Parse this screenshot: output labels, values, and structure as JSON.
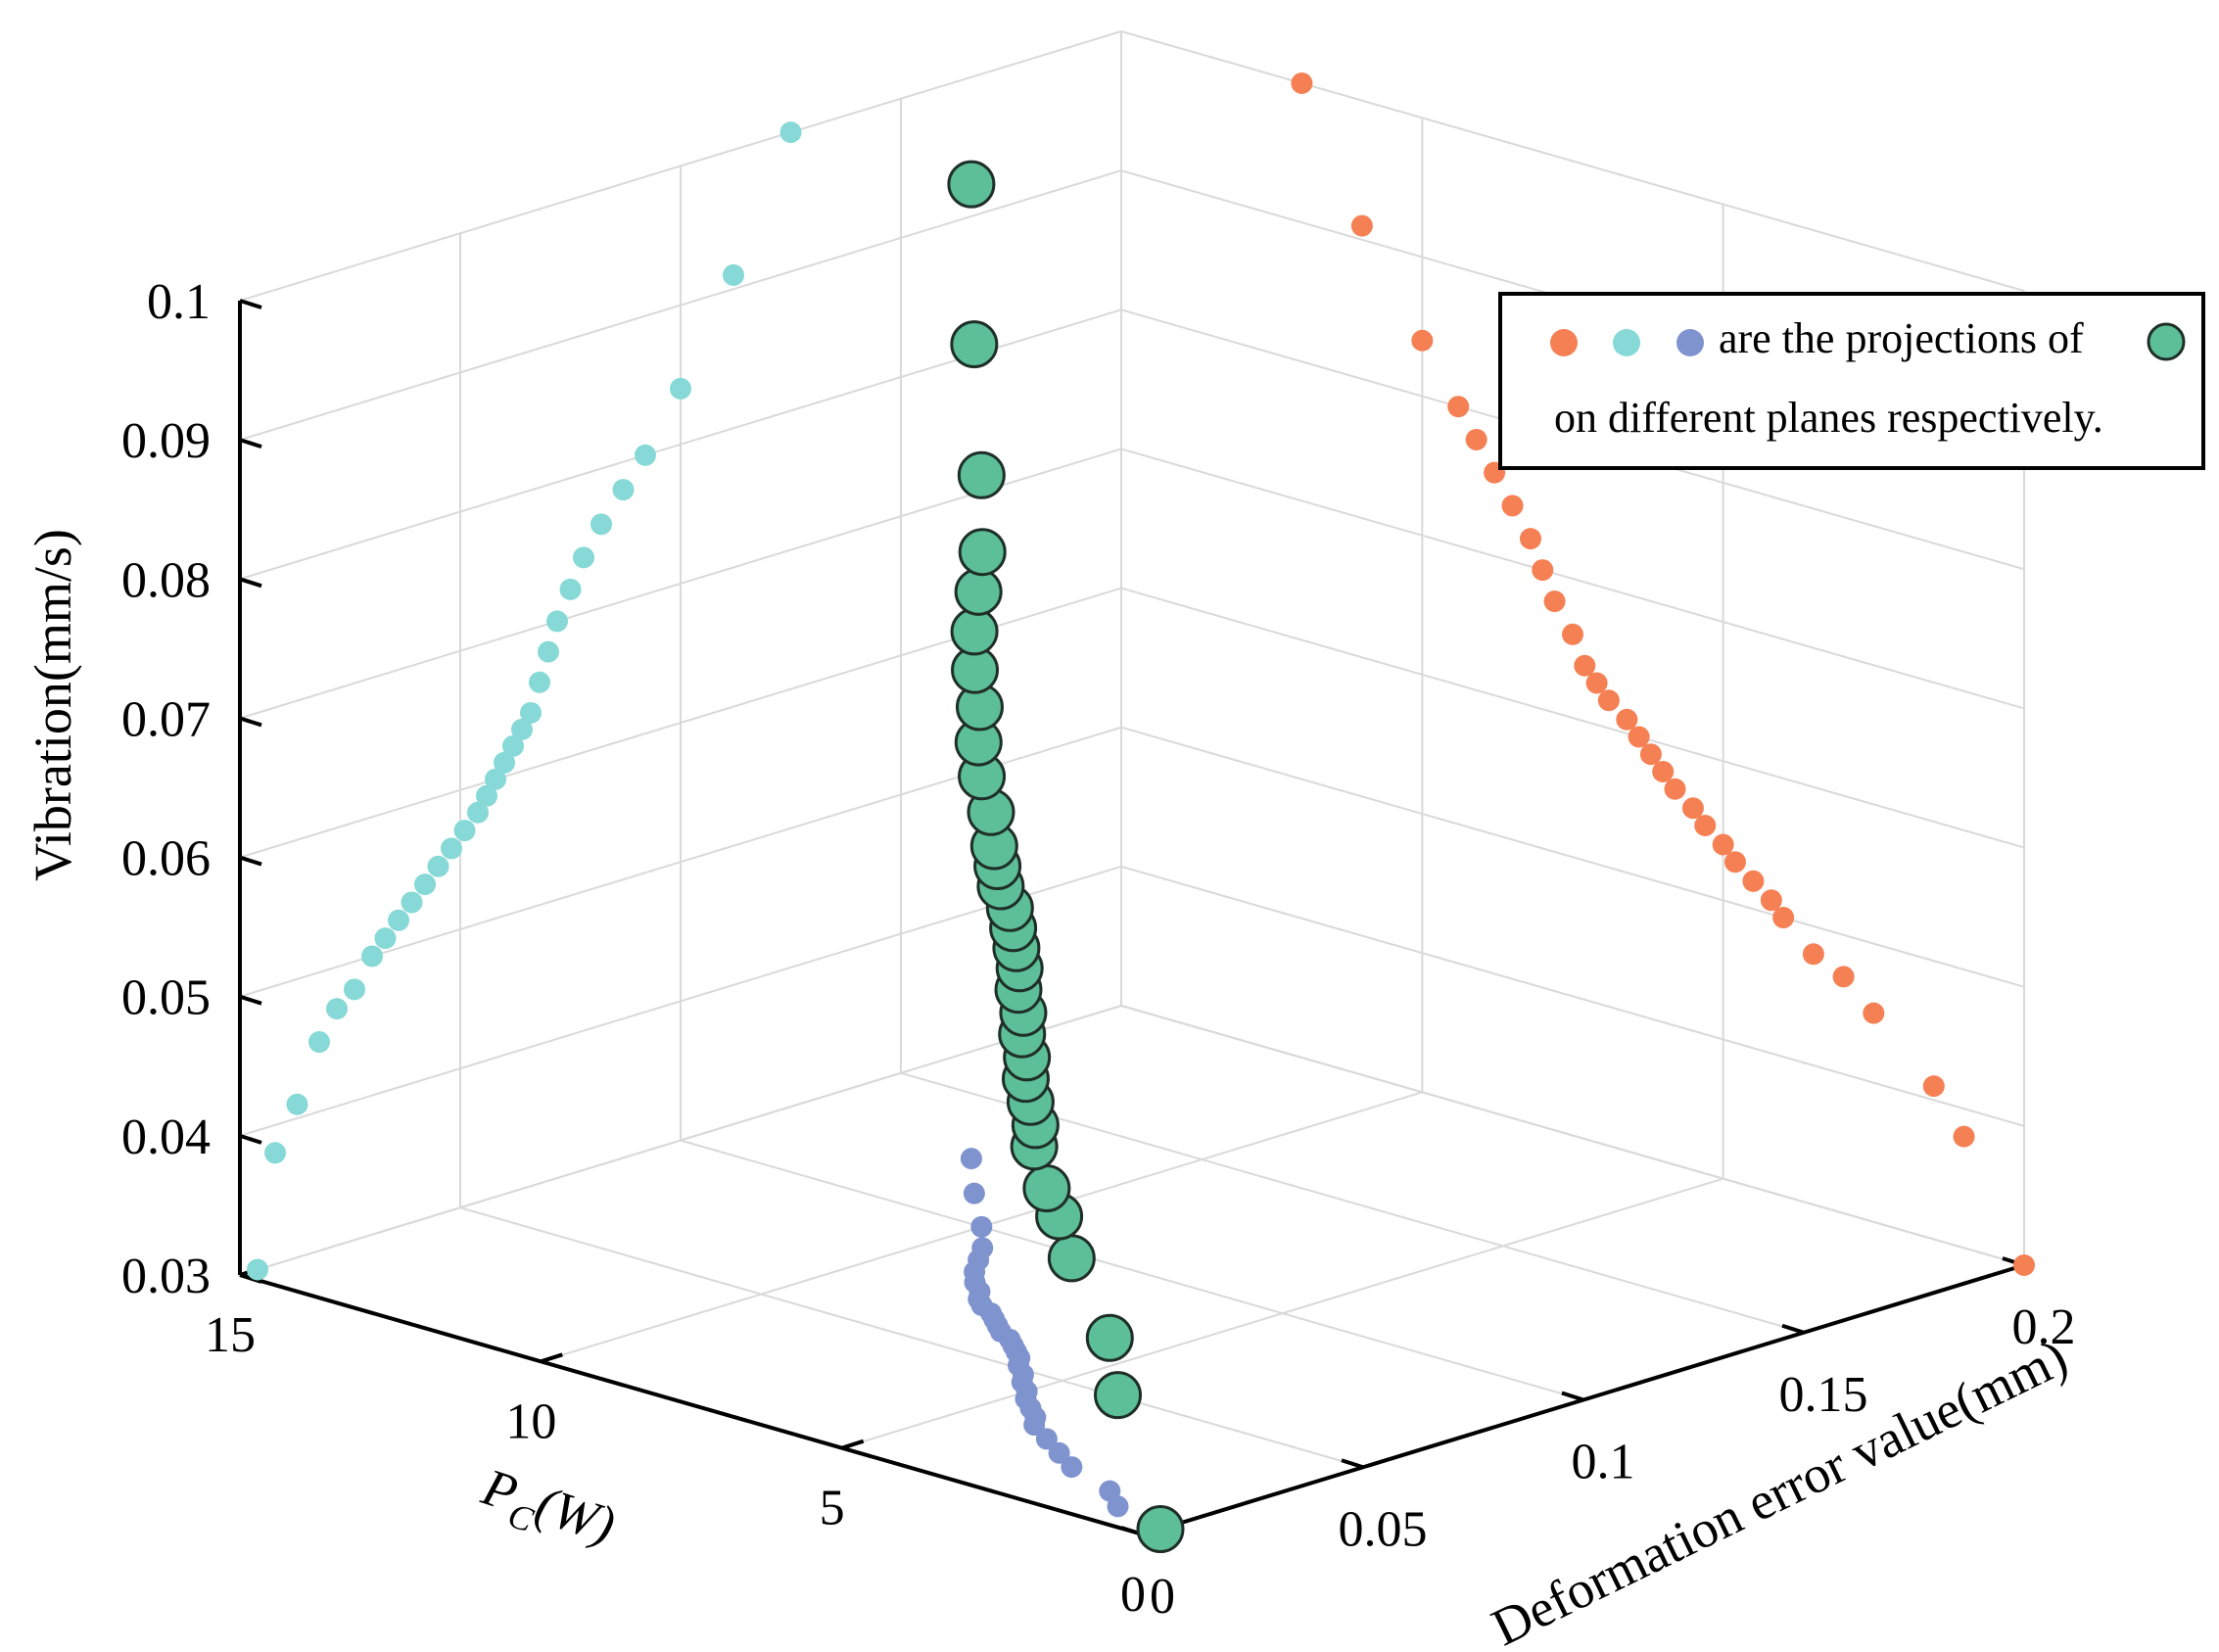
{
  "chart_data": {
    "type": "scatter",
    "projection": "3d",
    "title": "",
    "xlabel": "P",
    "xlabel_subscript": "C",
    "xlabel_suffix": "(W)",
    "ylabel": "Deformation error value(mm)",
    "zlabel": "Vibration(mm/s)",
    "xlim": [
      0,
      15
    ],
    "ylim": [
      0,
      0.2
    ],
    "zlim": [
      0.03,
      0.1
    ],
    "xticks": [
      "0",
      "5",
      "10",
      "15"
    ],
    "yticks": [
      "0",
      "0.05",
      "0.1",
      "0.15",
      "0.2"
    ],
    "zticks": [
      "0.03",
      "0.04",
      "0.05",
      "0.06",
      "0.07",
      "0.08",
      "0.09",
      "0.1"
    ],
    "grid": true,
    "legend_position": "top-right",
    "legend_text_line1": "are the projections of",
    "legend_text_line2": "on different planes respectively.",
    "colors": {
      "main_points": "#5cbf98",
      "main_edge": "#1f2f28",
      "projection_pc_vibration": "#f58054",
      "projection_error_vibration": "#86d9d6",
      "projection_pc_error": "#7f93cf"
    },
    "series": [
      {
        "role": "data",
        "points": [
          {
            "pc": 0.0,
            "err": 0.004,
            "vib": 0.03
          },
          {
            "pc": 1.0,
            "err": 0.008,
            "vib": 0.038
          },
          {
            "pc": 1.5,
            "err": 0.013,
            "vib": 0.041
          },
          {
            "pc": 2.5,
            "err": 0.018,
            "vib": 0.045
          },
          {
            "pc": 3.0,
            "err": 0.022,
            "vib": 0.047
          },
          {
            "pc": 3.5,
            "err": 0.026,
            "vib": 0.048
          },
          {
            "pc": 4.0,
            "err": 0.03,
            "vib": 0.05
          },
          {
            "pc": 4.2,
            "err": 0.033,
            "vib": 0.051
          },
          {
            "pc": 4.5,
            "err": 0.036,
            "vib": 0.052
          },
          {
            "pc": 4.8,
            "err": 0.039,
            "vib": 0.053
          },
          {
            "pc": 5.0,
            "err": 0.042,
            "vib": 0.054
          },
          {
            "pc": 5.3,
            "err": 0.045,
            "vib": 0.055
          },
          {
            "pc": 5.5,
            "err": 0.048,
            "vib": 0.056
          },
          {
            "pc": 5.8,
            "err": 0.051,
            "vib": 0.057
          },
          {
            "pc": 6.0,
            "err": 0.054,
            "vib": 0.058
          },
          {
            "pc": 6.2,
            "err": 0.056,
            "vib": 0.059
          },
          {
            "pc": 6.4,
            "err": 0.058,
            "vib": 0.06
          },
          {
            "pc": 6.6,
            "err": 0.06,
            "vib": 0.061
          },
          {
            "pc": 6.9,
            "err": 0.062,
            "vib": 0.062
          },
          {
            "pc": 7.1,
            "err": 0.064,
            "vib": 0.063
          },
          {
            "pc": 7.3,
            "err": 0.066,
            "vib": 0.064
          },
          {
            "pc": 7.5,
            "err": 0.068,
            "vib": 0.066
          },
          {
            "pc": 7.8,
            "err": 0.07,
            "vib": 0.068
          },
          {
            "pc": 8.0,
            "err": 0.072,
            "vib": 0.07
          },
          {
            "pc": 8.2,
            "err": 0.075,
            "vib": 0.072
          },
          {
            "pc": 8.5,
            "err": 0.078,
            "vib": 0.074
          },
          {
            "pc": 8.8,
            "err": 0.082,
            "vib": 0.076
          },
          {
            "pc": 9.1,
            "err": 0.087,
            "vib": 0.078
          },
          {
            "pc": 9.4,
            "err": 0.092,
            "vib": 0.08
          },
          {
            "pc": 10.0,
            "err": 0.1,
            "vib": 0.084
          },
          {
            "pc": 11.0,
            "err": 0.112,
            "vib": 0.091
          },
          {
            "pc": 12.0,
            "err": 0.125,
            "vib": 0.1
          }
        ]
      }
    ]
  }
}
